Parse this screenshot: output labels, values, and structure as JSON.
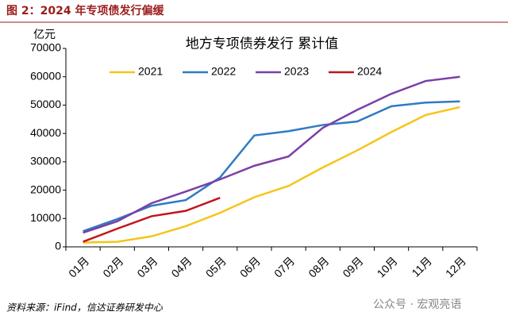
{
  "header": "图 2：2024 年专项债发行偏缓",
  "source": "资料来源：iFind，信达证券研发中心",
  "watermark": "公众号 · 宏观亮语",
  "chart_data": {
    "type": "line",
    "title": "地方专项债券发行 累计值",
    "y_unit": "亿元",
    "categories": [
      "01月",
      "02月",
      "03月",
      "04月",
      "05月",
      "06月",
      "07月",
      "08月",
      "09月",
      "10月",
      "11月",
      "12月"
    ],
    "series": [
      {
        "name": "2021",
        "color": "#f5c518",
        "values": [
          1500,
          1800,
          3700,
          7300,
          12000,
          17500,
          21500,
          28000,
          34000,
          40500,
          46500,
          49300
        ]
      },
      {
        "name": "2022",
        "color": "#2e7bc4",
        "values": [
          5500,
          9800,
          14500,
          16500,
          24500,
          39300,
          40800,
          43000,
          44200,
          49600,
          50900,
          51300
        ]
      },
      {
        "name": "2023",
        "color": "#7b3fa6",
        "values": [
          5000,
          9000,
          15400,
          19500,
          23800,
          28600,
          31900,
          42000,
          48300,
          54000,
          58500,
          60000
        ]
      },
      {
        "name": "2024",
        "color": "#c0161c",
        "values": [
          1800,
          6400,
          10800,
          12700,
          17300,
          null,
          null,
          null,
          null,
          null,
          null,
          null
        ]
      }
    ],
    "ylim": [
      0,
      70000
    ],
    "yticks": [
      0,
      10000,
      20000,
      30000,
      40000,
      50000,
      60000,
      70000
    ],
    "legend": "top"
  }
}
